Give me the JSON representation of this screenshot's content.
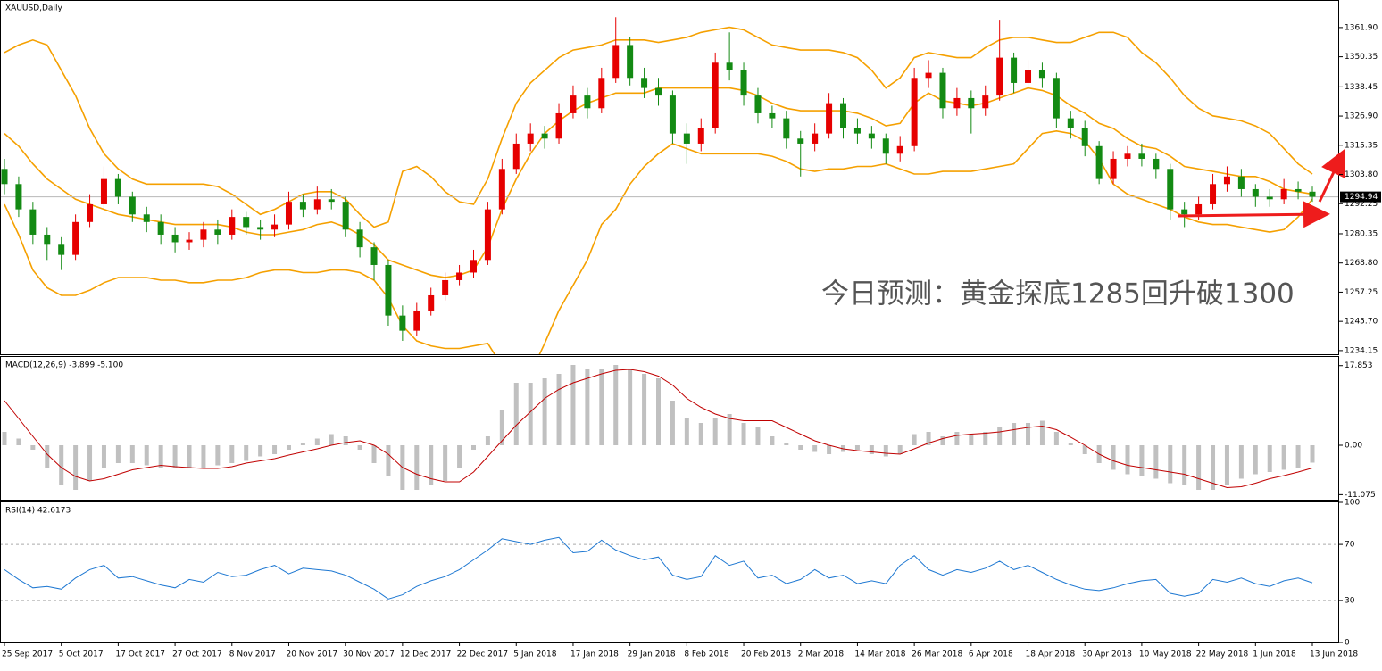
{
  "chart_data": [
    {
      "type": "candlestick",
      "title": "XAUUSD,Daily",
      "categories": [
        "25 Sep 2017",
        null,
        null,
        null,
        "5 Oct 2017",
        null,
        null,
        null,
        "17 Oct 2017",
        null,
        null,
        null,
        "27 Oct 2017",
        null,
        null,
        null,
        "8 Nov 2017",
        null,
        null,
        null,
        "20 Nov 2017",
        null,
        null,
        null,
        "30 Nov 2017",
        null,
        null,
        null,
        "12 Dec 2017",
        null,
        null,
        null,
        "22 Dec 2017",
        null,
        null,
        null,
        "5 Jan 2018",
        null,
        null,
        null,
        "17 Jan 2018",
        null,
        null,
        null,
        "29 Jan 2018",
        null,
        null,
        null,
        "8 Feb 2018",
        null,
        null,
        null,
        "20 Feb 2018",
        null,
        null,
        null,
        "2 Mar 2018",
        null,
        null,
        null,
        "14 Mar 2018",
        null,
        null,
        null,
        "26 Mar 2018",
        null,
        null,
        null,
        "6 Apr 2018",
        null,
        null,
        null,
        "18 Apr 2018",
        null,
        null,
        null,
        "30 Apr 2018",
        null,
        null,
        null,
        "10 May 2018",
        null,
        null,
        null,
        "22 May 2018",
        null,
        null,
        null,
        "1 Jun 2018",
        null,
        null,
        null,
        "13 Jun 2018"
      ],
      "open": [
        1306,
        1300,
        1290,
        1280,
        1276,
        1272,
        1285,
        1292,
        1302,
        1295,
        1288,
        1285,
        1280,
        1277,
        1278,
        1282,
        1280,
        1287,
        1283,
        1282,
        1284,
        1293,
        1290,
        1294,
        1293,
        1282,
        1275,
        1268,
        1248,
        1242,
        1250,
        1256,
        1262,
        1265,
        1270,
        1290,
        1306,
        1316,
        1320,
        1318,
        1328,
        1335,
        1330,
        1342,
        1355,
        1342,
        1338,
        1335,
        1320,
        1316,
        1322,
        1348,
        1345,
        1335,
        1328,
        1326,
        1318,
        1316,
        1320,
        1332,
        1322,
        1320,
        1318,
        1312,
        1315,
        1342,
        1344,
        1330,
        1334,
        1330,
        1335,
        1350,
        1340,
        1345,
        1342,
        1326,
        1322,
        1315,
        1302,
        1310,
        1312,
        1310,
        1306,
        1290,
        1288,
        1292,
        1300,
        1303,
        1298,
        1295,
        1294,
        1298,
        1297
      ],
      "high": [
        1310,
        1303,
        1293,
        1283,
        1279,
        1288,
        1296,
        1307,
        1304,
        1297,
        1291,
        1288,
        1283,
        1281,
        1285,
        1286,
        1290,
        1289,
        1286,
        1288,
        1297,
        1296,
        1299,
        1298,
        1295,
        1285,
        1277,
        1270,
        1252,
        1253,
        1259,
        1265,
        1268,
        1274,
        1293,
        1310,
        1320,
        1324,
        1323,
        1332,
        1339,
        1338,
        1346,
        1366,
        1358,
        1346,
        1342,
        1337,
        1324,
        1326,
        1352,
        1360,
        1348,
        1338,
        1331,
        1329,
        1321,
        1324,
        1336,
        1334,
        1326,
        1323,
        1320,
        1319,
        1346,
        1349,
        1346,
        1338,
        1337,
        1339,
        1365,
        1352,
        1349,
        1348,
        1344,
        1329,
        1325,
        1317,
        1313,
        1315,
        1316,
        1312,
        1308,
        1293,
        1295,
        1304,
        1307,
        1306,
        1300,
        1298,
        1302,
        1301,
        1299
      ],
      "low": [
        1296,
        1287,
        1276,
        1270,
        1266,
        1270,
        1283,
        1290,
        1292,
        1285,
        1281,
        1276,
        1273,
        1274,
        1275,
        1276,
        1278,
        1280,
        1278,
        1279,
        1282,
        1287,
        1288,
        1290,
        1279,
        1271,
        1262,
        1244,
        1238,
        1240,
        1248,
        1254,
        1260,
        1263,
        1268,
        1288,
        1304,
        1313,
        1314,
        1316,
        1326,
        1326,
        1328,
        1340,
        1339,
        1334,
        1331,
        1316,
        1308,
        1313,
        1320,
        1341,
        1331,
        1324,
        1322,
        1314,
        1303,
        1313,
        1318,
        1318,
        1316,
        1314,
        1308,
        1309,
        1313,
        1338,
        1326,
        1327,
        1320,
        1327,
        1333,
        1336,
        1337,
        1338,
        1322,
        1318,
        1311,
        1300,
        1300,
        1307,
        1307,
        1302,
        1286,
        1283,
        1286,
        1290,
        1297,
        1295,
        1291,
        1291,
        1292,
        1294,
        1293
      ],
      "close": [
        1300,
        1290,
        1280,
        1276,
        1272,
        1285,
        1292,
        1302,
        1295,
        1288,
        1285,
        1280,
        1277,
        1278,
        1282,
        1280,
        1287,
        1283,
        1282,
        1284,
        1293,
        1290,
        1294,
        1293,
        1282,
        1275,
        1268,
        1248,
        1242,
        1250,
        1256,
        1262,
        1265,
        1270,
        1290,
        1306,
        1316,
        1320,
        1318,
        1328,
        1335,
        1330,
        1342,
        1355,
        1342,
        1338,
        1335,
        1320,
        1316,
        1322,
        1348,
        1345,
        1335,
        1328,
        1326,
        1318,
        1316,
        1320,
        1332,
        1322,
        1320,
        1318,
        1312,
        1315,
        1342,
        1344,
        1330,
        1334,
        1330,
        1335,
        1350,
        1340,
        1345,
        1342,
        1326,
        1322,
        1315,
        1302,
        1310,
        1312,
        1310,
        1306,
        1290,
        1288,
        1292,
        1300,
        1303,
        1298,
        1295,
        1294,
        1298,
        1297,
        1295
      ],
      "up_color": "#e60000",
      "down_color": "#138a13",
      "bands": [
        {
          "color": "#f5a000",
          "values": [
            1352,
            1355,
            1357,
            1355,
            1345,
            1335,
            1322,
            1312,
            1306,
            1302,
            1300,
            1300,
            1300,
            1300,
            1300,
            1299,
            1296,
            1292,
            1288,
            1290,
            1293,
            1296,
            1297,
            1297,
            1294,
            1288,
            1283,
            1285,
            1305,
            1307,
            1303,
            1297,
            1293,
            1292,
            1302,
            1318,
            1332,
            1340,
            1345,
            1350,
            1353,
            1354,
            1355,
            1357,
            1357,
            1357,
            1356,
            1357,
            1358,
            1360,
            1361,
            1362,
            1361,
            1358,
            1355,
            1354,
            1353,
            1353,
            1353,
            1352,
            1350,
            1345,
            1338,
            1342,
            1350,
            1352,
            1351,
            1350,
            1350,
            1354,
            1357,
            1358,
            1358,
            1357,
            1356,
            1356,
            1358,
            1360,
            1360,
            1358,
            1352,
            1348,
            1342,
            1335,
            1330,
            1327,
            1326,
            1325,
            1323,
            1320,
            1314,
            1308,
            1304
          ]
        },
        {
          "color": "#f5a000",
          "values": [
            1320,
            1315,
            1308,
            1302,
            1298,
            1294,
            1292,
            1290,
            1288,
            1287,
            1286,
            1285,
            1284,
            1284,
            1284,
            1284,
            1283,
            1281,
            1280,
            1280,
            1281,
            1282,
            1284,
            1285,
            1283,
            1280,
            1276,
            1270,
            1268,
            1266,
            1264,
            1263,
            1264,
            1266,
            1275,
            1290,
            1302,
            1312,
            1320,
            1325,
            1329,
            1332,
            1334,
            1336,
            1336,
            1336,
            1338,
            1338,
            1338,
            1338,
            1338,
            1338,
            1337,
            1335,
            1332,
            1330,
            1329,
            1329,
            1329,
            1329,
            1328,
            1326,
            1323,
            1324,
            1332,
            1336,
            1333,
            1332,
            1331,
            1332,
            1334,
            1336,
            1338,
            1337,
            1335,
            1331,
            1328,
            1324,
            1322,
            1318,
            1315,
            1314,
            1311,
            1307,
            1306,
            1305,
            1304,
            1303,
            1303,
            1301,
            1298,
            1297,
            1296
          ]
        },
        {
          "color": "#f5a000",
          "values": [
            1292,
            1280,
            1266,
            1259,
            1256,
            1256,
            1258,
            1261,
            1263,
            1263,
            1263,
            1262,
            1262,
            1261,
            1261,
            1262,
            1262,
            1263,
            1265,
            1266,
            1266,
            1265,
            1265,
            1266,
            1266,
            1265,
            1262,
            1255,
            1244,
            1238,
            1236,
            1235,
            1235,
            1236,
            1237,
            1228,
            1222,
            1225,
            1237,
            1250,
            1260,
            1270,
            1284,
            1290,
            1300,
            1307,
            1312,
            1316,
            1314,
            1312,
            1312,
            1312,
            1312,
            1312,
            1311,
            1309,
            1306,
            1305,
            1306,
            1306,
            1307,
            1307,
            1308,
            1306,
            1304,
            1304,
            1305,
            1305,
            1305,
            1306,
            1307,
            1308,
            1314,
            1320,
            1321,
            1320,
            1317,
            1310,
            1300,
            1296,
            1294,
            1292,
            1290,
            1287,
            1285,
            1284,
            1284,
            1283,
            1282,
            1281,
            1282,
            1287,
            1294
          ]
        }
      ],
      "last_price": 1294.94,
      "ylim": [
        1232.7,
        1372.8
      ],
      "yticks": [
        1234.15,
        {
          "value": 1245.7,
          "label": "1245.70"
        },
        1257.25,
        {
          "value": 1268.8,
          "label": "1268.80"
        },
        1280.35,
        1292.25,
        {
          "value": 1303.8,
          "label": "1303.80"
        },
        1315.35,
        {
          "value": 1326.9,
          "label": "1326.90"
        },
        1338.45,
        1350.35,
        {
          "value": 1361.9,
          "label": "1361.90"
        }
      ],
      "annotation": "今日预测：黄金探底1285回升破1300"
    },
    {
      "type": "macd",
      "title": "MACD(12,26,9) -3.899 -5.100",
      "series": [
        {
          "type": "bar",
          "color": "#c0c0c0",
          "values": [
            3,
            1.5,
            -1,
            -5,
            -9,
            -10,
            -8,
            -5,
            -4,
            -4,
            -4.5,
            -5,
            -5,
            -5,
            -5,
            -4.5,
            -4,
            -3.5,
            -2.5,
            -2,
            -1,
            0.5,
            1.5,
            2.5,
            2,
            -1,
            -4,
            -7,
            -10,
            -10,
            -9,
            -8,
            -5,
            -1,
            2,
            8,
            14,
            14,
            15,
            16,
            18,
            17,
            17,
            18,
            17,
            16,
            15,
            10,
            6,
            5,
            6,
            7,
            5,
            4,
            2,
            0.5,
            -1,
            -1.5,
            -2,
            -1.5,
            -1,
            -2,
            -2.5,
            -2,
            2.5,
            3,
            2,
            3,
            2.5,
            3,
            4,
            5,
            5,
            5.5,
            3,
            0.5,
            -2,
            -4,
            -5.5,
            -6.5,
            -7,
            -7.5,
            -8.5,
            -9,
            -10,
            -10,
            -9,
            -7.5,
            -6.5,
            -6,
            -5.5,
            -5,
            -3.899
          ]
        },
        {
          "type": "line",
          "color": "#c00000",
          "values": [
            10,
            6,
            2,
            -2,
            -5,
            -7,
            -8,
            -7.5,
            -6.5,
            -5.5,
            -5,
            -4.5,
            -4.8,
            -5,
            -5.2,
            -5.2,
            -4.8,
            -4,
            -3.5,
            -3,
            -2.2,
            -1.5,
            -0.8,
            0,
            0.6,
            1,
            0,
            -2,
            -5,
            -6.5,
            -7.5,
            -8.2,
            -8.2,
            -6,
            -2.5,
            1,
            4.5,
            7.5,
            10.5,
            12.5,
            14,
            15,
            16,
            16.8,
            17,
            16.5,
            15.5,
            13.5,
            10.5,
            8.5,
            7,
            6,
            5.5,
            5.5,
            5.5,
            4,
            2.5,
            1,
            0,
            -0.8,
            -1.2,
            -1.5,
            -1.8,
            -2,
            -0.8,
            0.5,
            1.5,
            2.2,
            2.5,
            2.7,
            3,
            3.5,
            4,
            4.3,
            3.5,
            1.8,
            0,
            -2,
            -3.5,
            -4.5,
            -5,
            -5.5,
            -6,
            -6.5,
            -7.5,
            -8.5,
            -9.5,
            -9.3,
            -8.5,
            -7.5,
            -6.8,
            -6,
            -5.1
          ]
        }
      ],
      "ylim": [
        -12.2,
        19.8
      ],
      "yticks": [
        -11.075,
        {
          "value": 0,
          "label": "0.00"
        },
        17.853
      ]
    },
    {
      "type": "line",
      "title": "RSI(14) 42.6173",
      "color": "#1e78d2",
      "values": [
        52,
        45,
        39,
        40,
        38,
        46,
        52,
        55,
        46,
        47,
        44,
        41,
        39,
        45,
        43,
        50,
        47,
        48,
        52,
        55,
        49,
        53,
        52,
        51,
        48,
        43,
        38,
        31,
        34,
        40,
        44,
        47,
        52,
        59,
        66,
        74,
        72,
        70,
        73,
        75,
        64,
        65,
        73,
        66,
        62,
        59,
        61,
        48,
        45,
        47,
        62,
        55,
        58,
        46,
        48,
        42,
        45,
        52,
        46,
        48,
        42,
        44,
        42,
        55,
        62,
        52,
        48,
        52,
        50,
        53,
        58,
        52,
        55,
        50,
        45,
        41,
        38,
        37,
        39,
        42,
        44,
        45,
        35,
        33,
        35,
        45,
        43,
        46,
        42,
        40,
        44,
        46,
        42.6173
      ],
      "ylim": [
        0,
        100
      ],
      "yticks": [
        0,
        30,
        70,
        100
      ],
      "levels": [
        30,
        70
      ]
    }
  ]
}
